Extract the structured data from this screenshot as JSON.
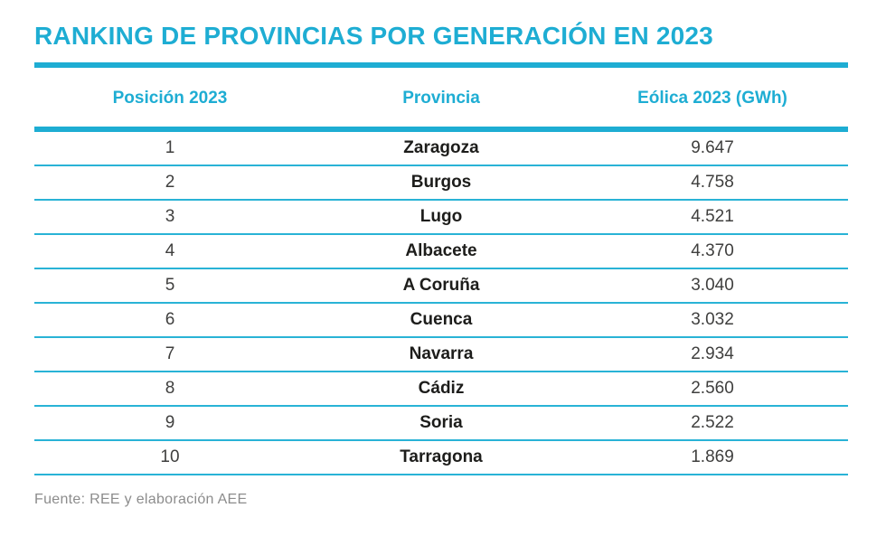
{
  "title": "RANKING DE PROVINCIAS POR GENERACIÓN EN 2023",
  "source": "Fuente: REE y elaboración AEE",
  "colors": {
    "accent_cyan": "#1eadd3",
    "row_divider_cyan": "#29b3d6",
    "province_text": "#1d1d1b",
    "value_text": "#3f3f3e",
    "source_text": "#8c8c8c"
  },
  "chart_data": {
    "type": "table",
    "title": "RANKING DE PROVINCIAS POR GENERACIÓN EN 2023",
    "columns": [
      "Posición 2023",
      "Provincia",
      "Eólica 2023 (GWh)"
    ],
    "rows": [
      [
        "1",
        "Zaragoza",
        "9.647"
      ],
      [
        "2",
        "Burgos",
        "4.758"
      ],
      [
        "3",
        "Lugo",
        "4.521"
      ],
      [
        "4",
        "Albacete",
        "4.370"
      ],
      [
        "5",
        "A Coruña",
        "3.040"
      ],
      [
        "6",
        "Cuenca",
        "3.032"
      ],
      [
        "7",
        "Navarra",
        "2.934"
      ],
      [
        "8",
        "Cádiz",
        "2.560"
      ],
      [
        "9",
        "Soria",
        "2.522"
      ],
      [
        "10",
        "Tarragona",
        "1.869"
      ]
    ],
    "values_gwh_numeric": [
      9647,
      4758,
      4521,
      4370,
      3040,
      3032,
      2934,
      2560,
      2522,
      1869
    ],
    "units": "GWh",
    "source": "Fuente: REE y elaboración AEE"
  }
}
